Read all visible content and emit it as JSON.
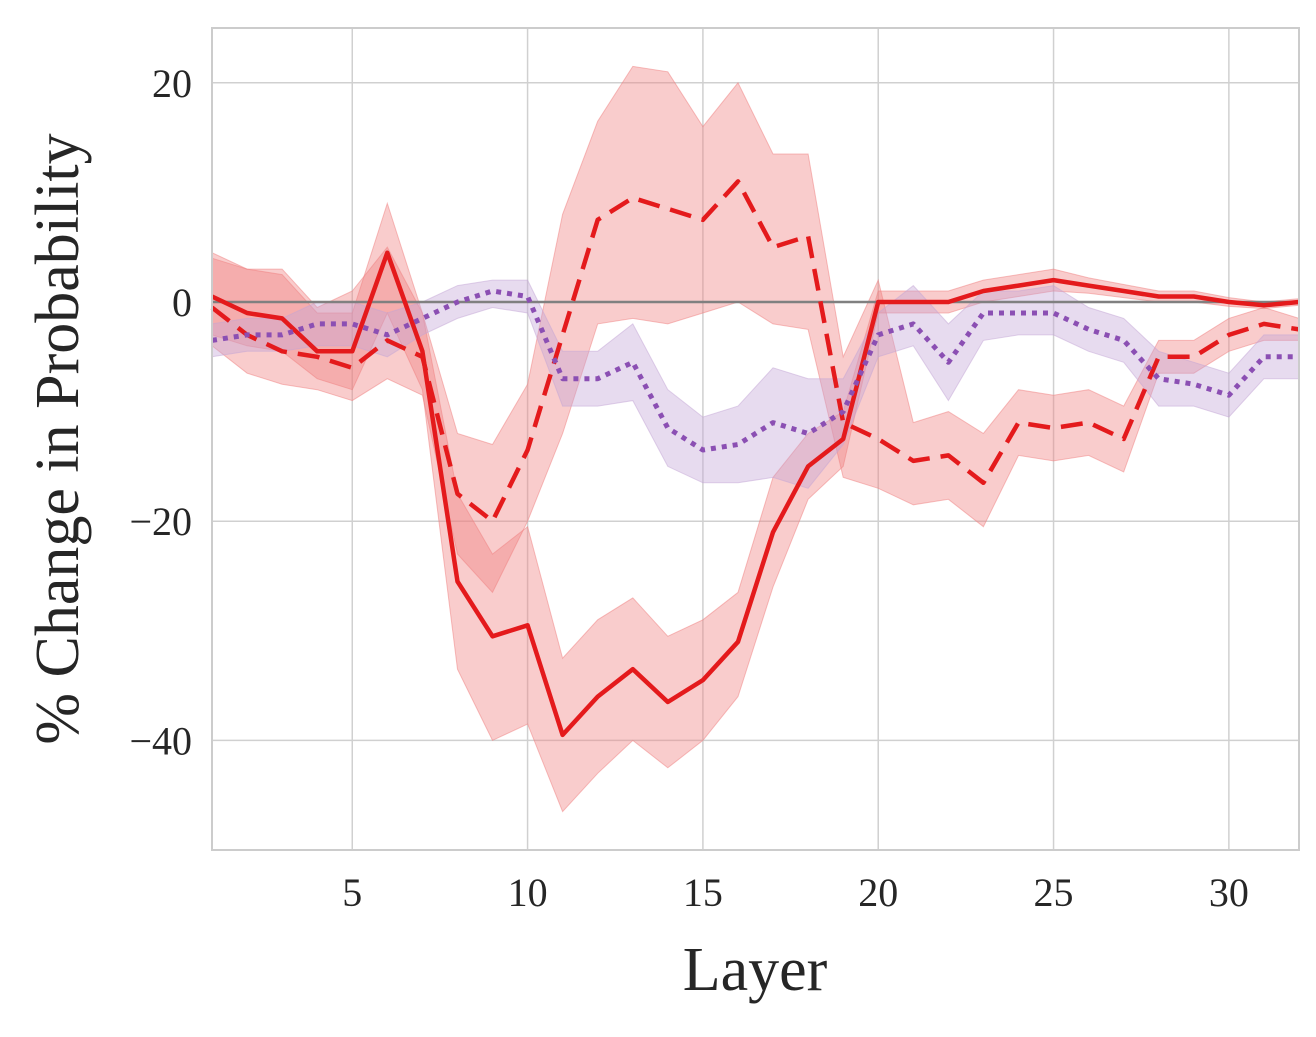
{
  "chart_data": {
    "type": "line",
    "xlabel": "Layer",
    "ylabel": "% Change in Probability",
    "xlim": [
      1,
      32
    ],
    "ylim": [
      -50,
      25
    ],
    "xticks": [
      5,
      10,
      15,
      20,
      25,
      30
    ],
    "yticks": [
      20,
      0,
      -20,
      -40
    ],
    "ytick_labels": [
      "20",
      "0",
      "−20",
      "−40"
    ],
    "grid": true,
    "legend": "none",
    "reference_line": {
      "y": 0,
      "color": "#808080"
    },
    "x": [
      1,
      2,
      3,
      4,
      5,
      6,
      7,
      8,
      9,
      10,
      11,
      12,
      13,
      14,
      15,
      16,
      17,
      18,
      19,
      20,
      21,
      22,
      23,
      24,
      25,
      26,
      27,
      28,
      29,
      30,
      31,
      32
    ],
    "series": [
      {
        "style": "solid",
        "color": "#e41a1c",
        "band_color": "#f08080",
        "values": [
          0.5,
          -1.0,
          -1.5,
          -4.5,
          -4.5,
          4.5,
          -4.5,
          -25.5,
          -30.5,
          -29.5,
          -39.5,
          -36.0,
          -33.5,
          -36.5,
          -34.5,
          -31.0,
          -21.0,
          -15.0,
          -12.5,
          0.0,
          0.0,
          0.0,
          1.0,
          1.5,
          2.0,
          1.5,
          1.0,
          0.5,
          0.5,
          0.0,
          -0.3,
          0.0
        ],
        "lower": [
          -3.0,
          -4.0,
          -4.5,
          -7.0,
          -8.0,
          -1.0,
          -8.0,
          -33.5,
          -40.0,
          -38.5,
          -46.5,
          -43.0,
          -40.0,
          -42.5,
          -40.0,
          -36.0,
          -26.0,
          -18.0,
          -15.0,
          -1.0,
          -1.0,
          -1.0,
          0.0,
          0.5,
          1.0,
          0.8,
          0.4,
          0.0,
          0.0,
          -0.4,
          -0.6,
          -0.3
        ],
        "upper": [
          4.0,
          3.0,
          2.5,
          -1.0,
          -1.0,
          9.0,
          -1.0,
          -17.5,
          -23.0,
          -20.5,
          -32.5,
          -29.0,
          -27.0,
          -30.5,
          -29.0,
          -26.5,
          -16.0,
          -12.0,
          -10.0,
          1.0,
          1.0,
          1.0,
          2.0,
          2.5,
          3.0,
          2.2,
          1.6,
          1.0,
          1.0,
          0.4,
          0.0,
          0.3
        ]
      },
      {
        "style": "dashed",
        "color": "#e41a1c",
        "band_color": "#f08080",
        "values": [
          -0.5,
          -3.0,
          -4.5,
          -5.0,
          -6.0,
          -3.5,
          -5.0,
          -17.5,
          -20.0,
          -13.5,
          -3.0,
          7.5,
          9.5,
          8.5,
          7.5,
          11.0,
          5.0,
          6.0,
          -11.0,
          -12.5,
          -14.5,
          -14.0,
          -16.5,
          -11.0,
          -11.5,
          -11.0,
          -12.5,
          -5.0,
          -5.0,
          -3.0,
          -2.0,
          -2.5
        ],
        "lower": [
          -4.0,
          -6.5,
          -7.5,
          -8.0,
          -9.0,
          -7.0,
          -8.5,
          -23.0,
          -26.5,
          -20.0,
          -12.0,
          -2.0,
          -1.5,
          -2.0,
          -1.0,
          0.0,
          -2.0,
          -2.5,
          -16.0,
          -17.0,
          -18.5,
          -18.0,
          -20.5,
          -14.0,
          -14.5,
          -14.0,
          -15.5,
          -6.5,
          -6.5,
          -4.5,
          -3.5,
          -3.5
        ],
        "upper": [
          4.5,
          3.0,
          3.0,
          -0.5,
          1.0,
          5.0,
          -1.0,
          -12.0,
          -13.0,
          -7.5,
          8.0,
          16.5,
          21.5,
          21.0,
          16.0,
          20.0,
          13.5,
          13.5,
          -5.0,
          2.0,
          -11.0,
          -10.0,
          -12.0,
          -8.0,
          -8.5,
          -8.0,
          -9.5,
          -3.5,
          -3.5,
          -1.5,
          -0.5,
          -1.5
        ]
      },
      {
        "style": "dotted",
        "color": "#8b4fb3",
        "band_color": "#c3a6d6",
        "values": [
          -3.5,
          -3.0,
          -3.0,
          -2.0,
          -2.0,
          -3.0,
          -1.5,
          0.0,
          1.0,
          0.5,
          -7.0,
          -7.0,
          -5.5,
          -11.5,
          -13.5,
          -13.0,
          -11.0,
          -12.0,
          -10.0,
          -3.0,
          -2.0,
          -5.5,
          -1.0,
          -1.0,
          -1.0,
          -2.5,
          -3.5,
          -7.0,
          -7.5,
          -8.5,
          -5.0,
          -5.0
        ],
        "lower": [
          -5.0,
          -4.5,
          -4.5,
          -4.0,
          -4.0,
          -5.0,
          -3.0,
          -1.5,
          -0.5,
          -1.0,
          -9.5,
          -9.5,
          -9.0,
          -15.0,
          -16.5,
          -16.5,
          -16.0,
          -17.0,
          -13.0,
          -5.0,
          -4.0,
          -9.0,
          -3.5,
          -3.0,
          -3.0,
          -4.5,
          -5.5,
          -9.5,
          -9.5,
          -10.5,
          -7.0,
          -7.0
        ],
        "upper": [
          -2.0,
          -1.5,
          -1.5,
          0.0,
          0.0,
          -1.0,
          0.0,
          1.5,
          2.0,
          2.0,
          -4.5,
          -4.5,
          -2.0,
          -8.0,
          -10.5,
          -9.5,
          -6.0,
          -7.0,
          -7.0,
          -1.0,
          1.5,
          -2.0,
          1.0,
          1.0,
          1.5,
          -0.5,
          -1.5,
          -4.5,
          -5.5,
          -6.5,
          -3.0,
          -3.0
        ]
      }
    ]
  }
}
